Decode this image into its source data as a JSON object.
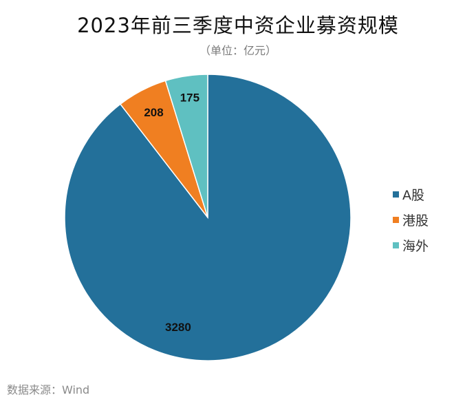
{
  "chart_data": {
    "type": "pie",
    "title": "2023年前三季度中资企业募资规模",
    "subtitle": "（单位：亿元）",
    "categories": [
      "A股",
      "港股",
      "海外"
    ],
    "values": [
      3280,
      208,
      175
    ],
    "colors": [
      "#23709a",
      "#f07f21",
      "#5fc0c1"
    ],
    "legend_position": "right",
    "source": "数据来源：Wind"
  }
}
